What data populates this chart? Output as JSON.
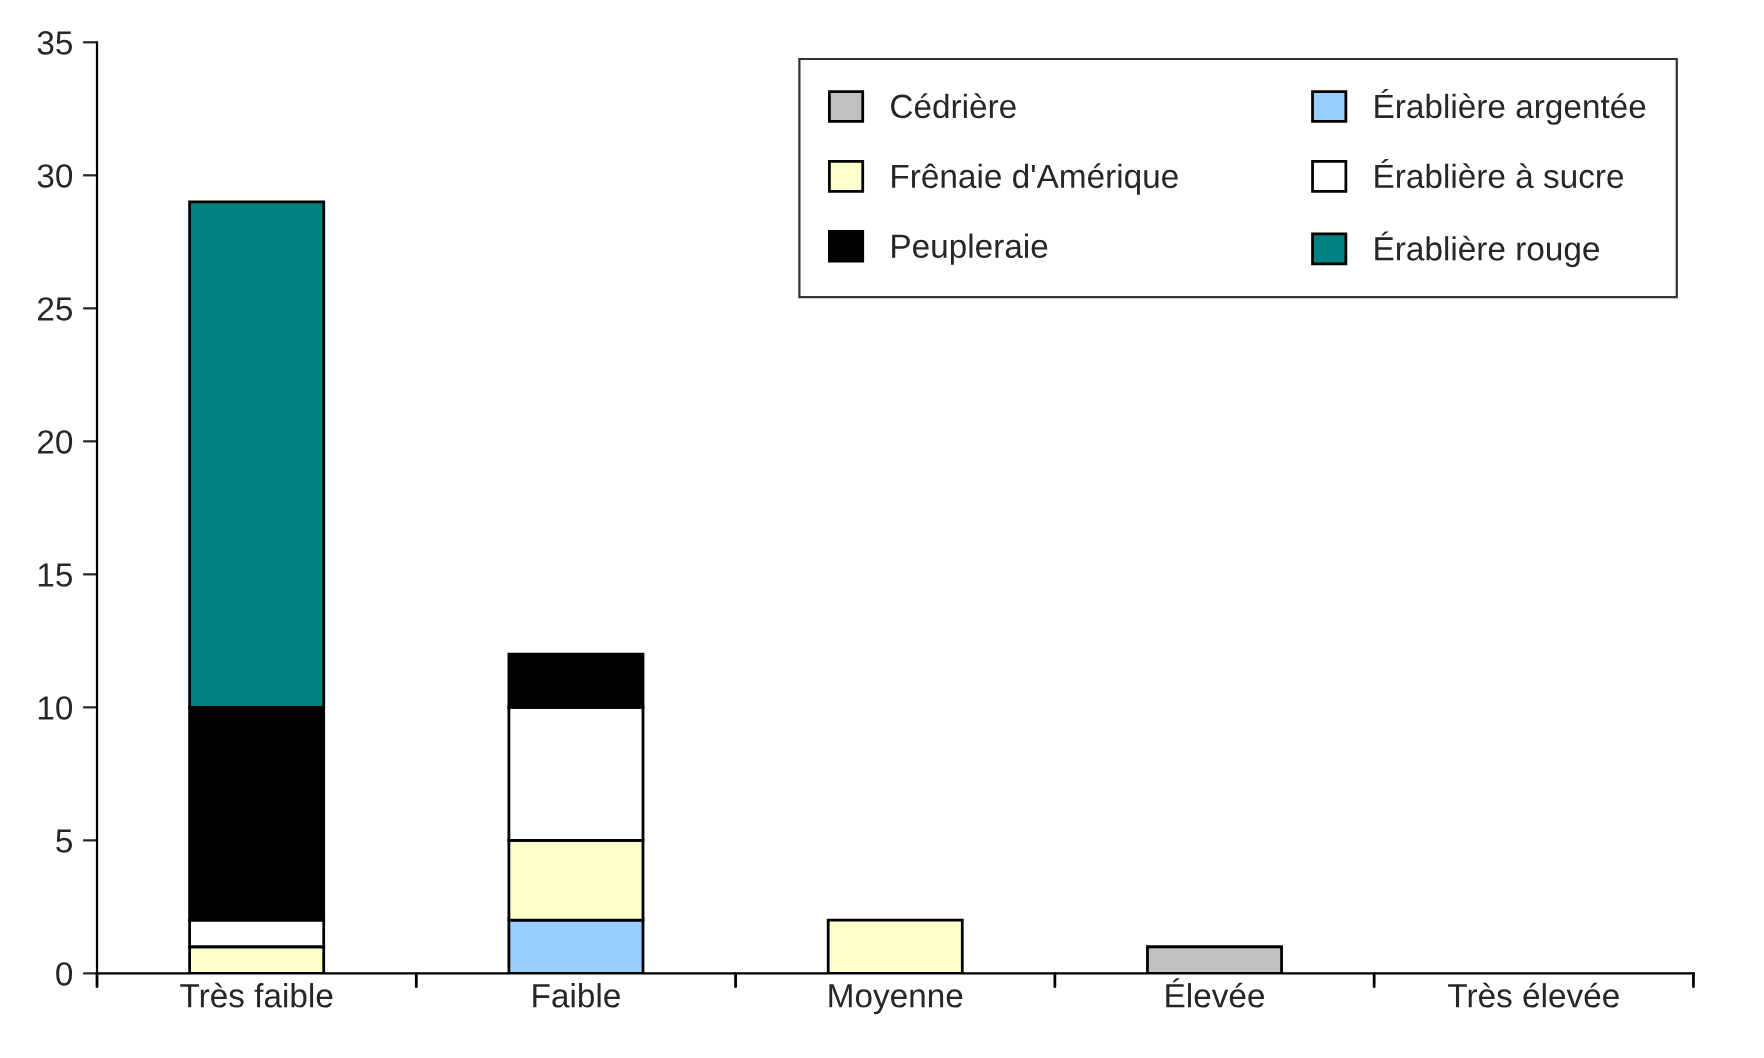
{
  "chart_data": {
    "type": "bar",
    "stacked": true,
    "categories": [
      "Très faible",
      "Faible",
      "Moyenne",
      "Élevée",
      "Très élevée"
    ],
    "series": [
      {
        "name": "Cédrière",
        "color": "#c0c0c0",
        "values": [
          null,
          null,
          null,
          1,
          null
        ]
      },
      {
        "name": "Érablière argentée",
        "color": "#99ccff",
        "values": [
          null,
          2,
          null,
          null,
          null
        ]
      },
      {
        "name": "Frênaie d'Amérique",
        "color": "#ffffcc",
        "values": [
          1,
          3,
          2,
          null,
          null
        ]
      },
      {
        "name": "Érablière à sucre",
        "color": "#ffffff",
        "values": [
          1,
          5,
          null,
          null,
          null
        ]
      },
      {
        "name": "Peupleraie",
        "color": "#000000",
        "values": [
          8,
          2,
          null,
          null,
          null
        ]
      },
      {
        "name": "Érablière rouge",
        "color": "#008080",
        "values": [
          19,
          null,
          null,
          null,
          null
        ]
      }
    ],
    "ylim": [
      0,
      35
    ],
    "yticks": [
      0,
      5,
      10,
      15,
      20,
      25,
      30,
      35
    ],
    "grid": false,
    "legend": "top right"
  }
}
